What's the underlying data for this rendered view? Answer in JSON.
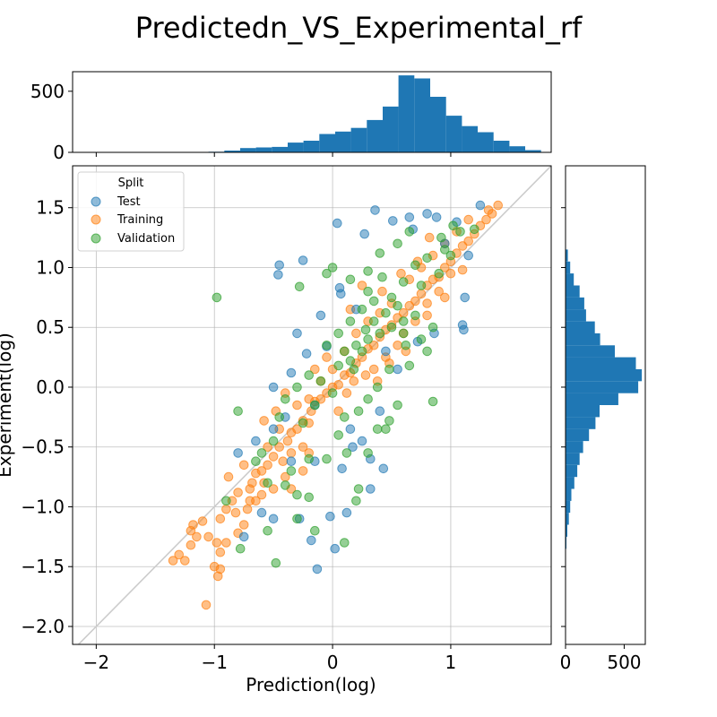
{
  "chart_data": {
    "type": "scatter",
    "title": "Predictedn_VS_Experimental_rf",
    "xlabel": "Prediction(log)",
    "ylabel": "Experiment(log)",
    "xlim": [
      -2.2,
      1.85
    ],
    "ylim": [
      -2.15,
      1.85
    ],
    "grid": true,
    "legend": {
      "title": "Split",
      "placement": "top-left",
      "entries": [
        "Test",
        "Training",
        "Validation"
      ]
    },
    "x_ticks": [
      {
        "v": -2,
        "label": "−2"
      },
      {
        "v": -1,
        "label": "−1"
      },
      {
        "v": 0,
        "label": "0"
      },
      {
        "v": 1,
        "label": "1"
      }
    ],
    "y_ticks": [
      {
        "v": 1.5,
        "label": "1.5"
      },
      {
        "v": 1.0,
        "label": "1.0"
      },
      {
        "v": 0.5,
        "label": "0.5"
      },
      {
        "v": 0.0,
        "label": "0.0"
      },
      {
        "v": -0.5,
        "label": "−0.5"
      },
      {
        "v": -1.0,
        "label": "−1.0"
      },
      {
        "v": -1.5,
        "label": "−1.5"
      },
      {
        "v": -2.0,
        "label": "−2.0"
      }
    ],
    "identity_line": {
      "from": [
        -2.2,
        -2.2
      ],
      "to": [
        1.85,
        1.85
      ],
      "color": "#cccccc"
    },
    "series": [
      {
        "name": "Test",
        "color": "#1f77b4",
        "points": [
          [
            -0.45,
            1.02
          ],
          [
            -0.46,
            0.94
          ],
          [
            -0.25,
            1.06
          ],
          [
            0.04,
            1.37
          ],
          [
            0.36,
            1.48
          ],
          [
            0.27,
            1.28
          ],
          [
            0.51,
            1.39
          ],
          [
            0.65,
            1.42
          ],
          [
            0.88,
            1.42
          ],
          [
            1.05,
            1.38
          ],
          [
            1.25,
            1.52
          ],
          [
            0.06,
            0.83
          ],
          [
            0.07,
            0.78
          ],
          [
            1.12,
            0.75
          ],
          [
            1.1,
            0.52
          ],
          [
            1.11,
            0.48
          ],
          [
            0.86,
            0.45
          ],
          [
            0.72,
            0.38
          ],
          [
            -0.05,
            0.34
          ],
          [
            -0.22,
            0.28
          ],
          [
            -0.35,
            0.12
          ],
          [
            -0.5,
            0.0
          ],
          [
            -0.4,
            -0.25
          ],
          [
            -0.5,
            -0.35
          ],
          [
            -0.65,
            -0.45
          ],
          [
            -0.8,
            -0.55
          ],
          [
            -0.35,
            -0.62
          ],
          [
            -0.15,
            -0.62
          ],
          [
            0.08,
            -0.68
          ],
          [
            0.32,
            -0.6
          ],
          [
            0.43,
            -0.68
          ],
          [
            0.17,
            -0.5
          ],
          [
            -0.6,
            -1.05
          ],
          [
            -0.75,
            -1.25
          ],
          [
            -0.5,
            -1.1
          ],
          [
            -0.28,
            -1.1
          ],
          [
            -0.18,
            -1.28
          ],
          [
            -0.13,
            -1.52
          ],
          [
            0.02,
            -1.35
          ],
          [
            -0.02,
            -1.08
          ],
          [
            0.12,
            -1.05
          ],
          [
            0.32,
            -0.85
          ],
          [
            0.2,
            0.65
          ],
          [
            0.45,
            0.3
          ],
          [
            0.55,
            0.15
          ],
          [
            0.15,
            -0.35
          ],
          [
            0.25,
            -0.45
          ],
          [
            -0.3,
            0.45
          ],
          [
            -0.1,
            0.6
          ],
          [
            0.68,
            1.32
          ],
          [
            0.8,
            1.45
          ],
          [
            0.95,
            1.2
          ],
          [
            1.15,
            1.1
          ],
          [
            0.4,
            -0.2
          ],
          [
            -0.15,
            -0.15
          ]
        ]
      },
      {
        "name": "Training",
        "color": "#ff7f0e",
        "points": [
          [
            -1.35,
            -1.45
          ],
          [
            -1.3,
            -1.4
          ],
          [
            -1.25,
            -1.45
          ],
          [
            -1.2,
            -1.32
          ],
          [
            -1.15,
            -1.25
          ],
          [
            -1.18,
            -1.15
          ],
          [
            -1.1,
            -1.12
          ],
          [
            -1.05,
            -1.25
          ],
          [
            -0.98,
            -1.3
          ],
          [
            -0.95,
            -1.38
          ],
          [
            -1.0,
            -1.5
          ],
          [
            -0.95,
            -1.52
          ],
          [
            -1.07,
            -1.82
          ],
          [
            -0.95,
            -1.1
          ],
          [
            -0.9,
            -1.02
          ],
          [
            -0.85,
            -0.95
          ],
          [
            -0.8,
            -0.88
          ],
          [
            -0.82,
            -1.05
          ],
          [
            -0.75,
            -1.15
          ],
          [
            -0.72,
            -1.02
          ],
          [
            -0.7,
            -0.85
          ],
          [
            -0.68,
            -0.8
          ],
          [
            -0.65,
            -0.72
          ],
          [
            -0.6,
            -0.7
          ],
          [
            -0.55,
            -0.65
          ],
          [
            -0.5,
            -0.58
          ],
          [
            -0.45,
            -0.5
          ],
          [
            -0.42,
            -0.62
          ],
          [
            -0.38,
            -0.45
          ],
          [
            -0.35,
            -0.38
          ],
          [
            -0.3,
            -0.35
          ],
          [
            -0.25,
            -0.28
          ],
          [
            -0.2,
            -0.3
          ],
          [
            -0.18,
            -0.2
          ],
          [
            -0.15,
            -0.12
          ],
          [
            -0.1,
            -0.1
          ],
          [
            -0.05,
            -0.05
          ],
          [
            0.0,
            0.0
          ],
          [
            0.05,
            0.02
          ],
          [
            0.1,
            0.1
          ],
          [
            0.15,
            0.12
          ],
          [
            0.2,
            0.2
          ],
          [
            0.25,
            0.25
          ],
          [
            0.3,
            0.32
          ],
          [
            0.35,
            0.35
          ],
          [
            0.4,
            0.42
          ],
          [
            0.45,
            0.48
          ],
          [
            0.5,
            0.52
          ],
          [
            0.55,
            0.58
          ],
          [
            0.6,
            0.62
          ],
          [
            0.65,
            0.68
          ],
          [
            0.7,
            0.72
          ],
          [
            0.75,
            0.78
          ],
          [
            0.8,
            0.85
          ],
          [
            0.85,
            0.9
          ],
          [
            0.9,
            0.92
          ],
          [
            0.95,
            1.0
          ],
          [
            1.0,
            1.05
          ],
          [
            1.05,
            1.12
          ],
          [
            1.1,
            1.18
          ],
          [
            1.15,
            1.22
          ],
          [
            1.2,
            1.28
          ],
          [
            1.25,
            1.35
          ],
          [
            1.3,
            1.4
          ],
          [
            1.35,
            1.45
          ],
          [
            1.4,
            1.52
          ],
          [
            1.32,
            1.48
          ],
          [
            -0.6,
            -0.9
          ],
          [
            -0.5,
            -0.85
          ],
          [
            -0.4,
            -0.75
          ],
          [
            -0.55,
            -0.5
          ],
          [
            -0.45,
            -0.35
          ],
          [
            -0.35,
            -0.55
          ],
          [
            -0.25,
            -0.5
          ],
          [
            -0.2,
            -0.1
          ],
          [
            -0.1,
            0.05
          ],
          [
            -0.3,
            -0.15
          ],
          [
            0.0,
            0.15
          ],
          [
            0.1,
            0.3
          ],
          [
            0.2,
            0.45
          ],
          [
            0.3,
            0.55
          ],
          [
            0.4,
            0.62
          ],
          [
            0.35,
            0.15
          ],
          [
            0.45,
            0.25
          ],
          [
            0.55,
            0.35
          ],
          [
            0.6,
            0.45
          ],
          [
            0.7,
            0.55
          ],
          [
            0.8,
            0.7
          ],
          [
            0.9,
            0.8
          ],
          [
            1.0,
            0.95
          ],
          [
            0.65,
            0.9
          ],
          [
            0.75,
            1.0
          ],
          [
            0.85,
            1.1
          ],
          [
            0.95,
            1.2
          ],
          [
            0.5,
            0.7
          ],
          [
            0.42,
            0.8
          ],
          [
            -0.75,
            -0.65
          ],
          [
            -0.65,
            -0.95
          ],
          [
            -0.88,
            -0.75
          ],
          [
            -0.8,
            -1.22
          ],
          [
            -0.9,
            -1.3
          ],
          [
            -1.2,
            -1.2
          ],
          [
            -0.97,
            -1.58
          ],
          [
            -0.58,
            -0.28
          ],
          [
            -0.48,
            -0.2
          ],
          [
            -0.2,
            -0.55
          ],
          [
            0.05,
            -0.2
          ],
          [
            0.12,
            -0.05
          ],
          [
            0.18,
            0.05
          ],
          [
            0.28,
            0.1
          ],
          [
            0.58,
            0.95
          ],
          [
            0.72,
            1.05
          ],
          [
            0.82,
            1.25
          ],
          [
            1.05,
            1.3
          ],
          [
            1.15,
            1.4
          ],
          [
            0.25,
            0.85
          ],
          [
            0.15,
            0.65
          ],
          [
            -0.05,
            0.25
          ],
          [
            -0.15,
            0.15
          ],
          [
            -0.4,
            -0.05
          ],
          [
            -0.58,
            -0.8
          ],
          [
            -0.7,
            -0.95
          ],
          [
            -0.35,
            -0.85
          ],
          [
            -0.25,
            -0.7
          ],
          [
            0.38,
            0.05
          ],
          [
            0.48,
            0.2
          ],
          [
            0.62,
            0.3
          ],
          [
            0.8,
            0.6
          ],
          [
            0.95,
            0.75
          ],
          [
            1.1,
            0.98
          ]
        ]
      },
      {
        "name": "Validation",
        "color": "#2ca02c",
        "points": [
          [
            -0.98,
            0.75
          ],
          [
            -0.28,
            0.84
          ],
          [
            -0.05,
            0.95
          ],
          [
            0.0,
            1.0
          ],
          [
            0.15,
            0.9
          ],
          [
            0.3,
            0.97
          ],
          [
            0.4,
            1.12
          ],
          [
            0.55,
            1.2
          ],
          [
            0.65,
            1.3
          ],
          [
            0.7,
            1.02
          ],
          [
            0.8,
            1.08
          ],
          [
            0.92,
            1.25
          ],
          [
            1.02,
            1.35
          ],
          [
            1.08,
            1.3
          ],
          [
            1.2,
            1.32
          ],
          [
            0.6,
            0.88
          ],
          [
            0.5,
            0.75
          ],
          [
            0.35,
            0.72
          ],
          [
            0.25,
            0.65
          ],
          [
            0.15,
            0.55
          ],
          [
            0.05,
            0.45
          ],
          [
            -0.05,
            0.35
          ],
          [
            0.1,
            0.3
          ],
          [
            0.2,
            0.35
          ],
          [
            0.3,
            0.4
          ],
          [
            0.4,
            0.45
          ],
          [
            0.5,
            0.5
          ],
          [
            0.6,
            0.55
          ],
          [
            0.7,
            0.6
          ],
          [
            0.85,
            0.5
          ],
          [
            0.75,
            0.4
          ],
          [
            0.62,
            0.35
          ],
          [
            0.48,
            0.15
          ],
          [
            0.38,
            0.0
          ],
          [
            0.3,
            -0.1
          ],
          [
            0.22,
            -0.2
          ],
          [
            0.1,
            -0.25
          ],
          [
            0.0,
            -0.05
          ],
          [
            -0.1,
            0.05
          ],
          [
            -0.2,
            0.1
          ],
          [
            -0.3,
            0.0
          ],
          [
            -0.4,
            -0.1
          ],
          [
            -0.45,
            -0.25
          ],
          [
            -0.5,
            -0.45
          ],
          [
            -0.6,
            -0.55
          ],
          [
            -0.65,
            -0.62
          ],
          [
            -0.8,
            -0.2
          ],
          [
            -0.55,
            -0.8
          ],
          [
            -0.4,
            -0.82
          ],
          [
            -0.3,
            -0.9
          ],
          [
            -0.2,
            -0.92
          ],
          [
            -0.3,
            -1.1
          ],
          [
            -0.15,
            -1.2
          ],
          [
            0.1,
            -1.3
          ],
          [
            0.2,
            -0.95
          ],
          [
            0.22,
            -0.85
          ],
          [
            0.3,
            -0.55
          ],
          [
            0.45,
            -0.35
          ],
          [
            0.55,
            -0.15
          ],
          [
            0.85,
            -0.12
          ],
          [
            0.48,
            -0.28
          ],
          [
            -0.48,
            -1.47
          ],
          [
            -0.55,
            -1.2
          ],
          [
            -0.78,
            -1.35
          ],
          [
            -0.9,
            -0.95
          ],
          [
            0.35,
            0.55
          ],
          [
            0.45,
            0.62
          ],
          [
            0.55,
            0.68
          ],
          [
            0.25,
            0.3
          ],
          [
            0.15,
            0.22
          ],
          [
            0.05,
            0.18
          ],
          [
            -0.15,
            -0.15
          ],
          [
            -0.25,
            -0.3
          ],
          [
            0.75,
            0.85
          ],
          [
            0.9,
            0.95
          ],
          [
            1.0,
            1.1
          ],
          [
            0.3,
            0.8
          ],
          [
            0.42,
            0.92
          ],
          [
            0.18,
            0.15
          ],
          [
            0.28,
            0.48
          ],
          [
            0.65,
            0.18
          ],
          [
            0.8,
            0.3
          ],
          [
            0.12,
            -0.55
          ],
          [
            -0.05,
            -0.6
          ],
          [
            0.05,
            -0.4
          ],
          [
            0.38,
            -0.35
          ],
          [
            -0.2,
            -0.6
          ],
          [
            -0.35,
            -0.7
          ],
          [
            0.6,
            0.45
          ],
          [
            0.95,
            1.15
          ]
        ]
      }
    ],
    "top_histogram": {
      "axis": "x",
      "ylim": [
        0,
        660
      ],
      "y_ticks": [
        {
          "v": 0,
          "label": "0"
        },
        {
          "v": 500,
          "label": "500"
        }
      ],
      "bin_start": -1.05,
      "bin_width": 0.134,
      "counts": [
        5,
        15,
        35,
        40,
        45,
        80,
        95,
        150,
        170,
        200,
        265,
        375,
        630,
        605,
        455,
        300,
        215,
        165,
        95,
        50,
        18
      ]
    },
    "right_histogram": {
      "axis": "y",
      "xlim": [
        0,
        680
      ],
      "x_ticks": [
        {
          "v": 0,
          "label": "0"
        },
        {
          "v": 500,
          "label": "500"
        }
      ],
      "bin_start": -1.35,
      "bin_width": 0.1,
      "counts": [
        8,
        15,
        28,
        40,
        50,
        75,
        100,
        120,
        150,
        200,
        255,
        290,
        450,
        620,
        650,
        600,
        420,
        295,
        250,
        175,
        160,
        120,
        70,
        40,
        20
      ]
    }
  }
}
